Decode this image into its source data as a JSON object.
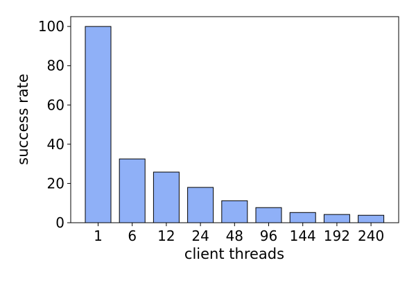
{
  "chart_data": {
    "type": "bar",
    "title": "",
    "xlabel": "client threads",
    "ylabel": "success rate",
    "categories": [
      "1",
      "6",
      "12",
      "24",
      "48",
      "96",
      "144",
      "192",
      "240"
    ],
    "values": [
      100,
      32.5,
      25.8,
      18.0,
      11.2,
      7.7,
      5.2,
      4.2,
      3.8
    ],
    "ylim": [
      0,
      105
    ],
    "yticks": [
      0,
      20,
      40,
      60,
      80,
      100
    ],
    "grid": false,
    "legend": "none",
    "colors": {
      "bar_fill": "#8fb0f7",
      "bar_edge": "#000000",
      "axis": "#000000"
    }
  }
}
